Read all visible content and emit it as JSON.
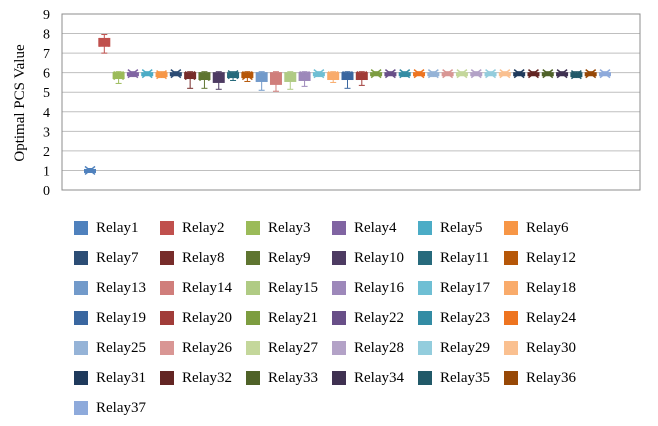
{
  "chart_data": {
    "type": "boxplot",
    "ylabel": "Optimal PCS  Value",
    "ylim": [
      0,
      9
    ],
    "y_ticks": [
      0,
      1,
      2,
      3,
      4,
      5,
      6,
      7,
      8,
      9
    ],
    "grid": true,
    "legend_placement": "bottom",
    "series": [
      {
        "name": "Relay1",
        "color": "#4f81bd",
        "median": 1.0,
        "q1": 0.95,
        "q3": 1.05,
        "min": 0.9,
        "max": 1.1
      },
      {
        "name": "Relay2",
        "color": "#c0504d",
        "median": 7.55,
        "q1": 7.35,
        "q3": 7.75,
        "min": 7.0,
        "max": 7.95
      },
      {
        "name": "Relay3",
        "color": "#9bbb59",
        "median": 5.85,
        "q1": 5.7,
        "q3": 6.0,
        "min": 5.45,
        "max": 6.05
      },
      {
        "name": "Relay4",
        "color": "#8064a2",
        "median": 5.95,
        "q1": 5.85,
        "q3": 6.0,
        "min": 5.8,
        "max": 6.05
      },
      {
        "name": "Relay5",
        "color": "#4bacc6",
        "median": 5.95,
        "q1": 5.9,
        "q3": 6.0,
        "min": 5.85,
        "max": 6.05
      },
      {
        "name": "Relay6",
        "color": "#f79646",
        "median": 5.9,
        "q1": 5.8,
        "q3": 6.0,
        "min": 5.75,
        "max": 6.05
      },
      {
        "name": "Relay7",
        "color": "#2c4d75",
        "median": 5.95,
        "q1": 5.9,
        "q3": 6.0,
        "min": 5.85,
        "max": 6.05
      },
      {
        "name": "Relay8",
        "color": "#772c2a",
        "median": 5.85,
        "q1": 5.7,
        "q3": 6.0,
        "min": 5.2,
        "max": 6.05
      },
      {
        "name": "Relay9",
        "color": "#5f7530",
        "median": 5.8,
        "q1": 5.65,
        "q3": 6.0,
        "min": 5.2,
        "max": 6.05
      },
      {
        "name": "Relay10",
        "color": "#4d3b62",
        "median": 5.75,
        "q1": 5.5,
        "q3": 6.0,
        "min": 5.15,
        "max": 6.05
      },
      {
        "name": "Relay11",
        "color": "#276a7c",
        "median": 5.9,
        "q1": 5.75,
        "q3": 6.0,
        "min": 5.6,
        "max": 6.05
      },
      {
        "name": "Relay12",
        "color": "#b65708",
        "median": 5.85,
        "q1": 5.75,
        "q3": 6.0,
        "min": 5.55,
        "max": 6.05
      },
      {
        "name": "Relay13",
        "color": "#729aca",
        "median": 5.75,
        "q1": 5.55,
        "q3": 6.0,
        "min": 5.1,
        "max": 6.05
      },
      {
        "name": "Relay14",
        "color": "#d07e7b",
        "median": 5.7,
        "q1": 5.4,
        "q3": 6.0,
        "min": 5.05,
        "max": 6.05
      },
      {
        "name": "Relay15",
        "color": "#b0cb84",
        "median": 5.8,
        "q1": 5.55,
        "q3": 6.0,
        "min": 5.15,
        "max": 6.05
      },
      {
        "name": "Relay16",
        "color": "#9d88ba",
        "median": 5.85,
        "q1": 5.6,
        "q3": 6.0,
        "min": 5.3,
        "max": 6.05
      },
      {
        "name": "Relay17",
        "color": "#6fbfd4",
        "median": 5.95,
        "q1": 5.85,
        "q3": 6.0,
        "min": 5.8,
        "max": 6.05
      },
      {
        "name": "Relay18",
        "color": "#f9ab6b",
        "median": 5.85,
        "q1": 5.65,
        "q3": 6.0,
        "min": 5.5,
        "max": 6.05
      },
      {
        "name": "Relay19",
        "color": "#3a67a0",
        "median": 5.85,
        "q1": 5.65,
        "q3": 6.0,
        "min": 5.2,
        "max": 6.05
      },
      {
        "name": "Relay20",
        "color": "#a13c39",
        "median": 5.85,
        "q1": 5.65,
        "q3": 6.0,
        "min": 5.35,
        "max": 6.05
      },
      {
        "name": "Relay21",
        "color": "#7d9d40",
        "median": 5.95,
        "q1": 5.9,
        "q3": 6.0,
        "min": 5.85,
        "max": 6.05
      },
      {
        "name": "Relay22",
        "color": "#684f88",
        "median": 5.95,
        "q1": 5.9,
        "q3": 6.0,
        "min": 5.85,
        "max": 6.05
      },
      {
        "name": "Relay23",
        "color": "#338ca4",
        "median": 5.95,
        "q1": 5.85,
        "q3": 6.0,
        "min": 5.8,
        "max": 6.05
      },
      {
        "name": "Relay24",
        "color": "#ee7420",
        "median": 5.95,
        "q1": 5.9,
        "q3": 6.0,
        "min": 5.85,
        "max": 6.05
      },
      {
        "name": "Relay25",
        "color": "#95b3d7",
        "median": 5.95,
        "q1": 5.85,
        "q3": 6.0,
        "min": 5.8,
        "max": 6.05
      },
      {
        "name": "Relay26",
        "color": "#d99694",
        "median": 5.95,
        "q1": 5.9,
        "q3": 6.0,
        "min": 5.85,
        "max": 6.05
      },
      {
        "name": "Relay27",
        "color": "#c4d79b",
        "median": 5.95,
        "q1": 5.9,
        "q3": 6.0,
        "min": 5.85,
        "max": 6.05
      },
      {
        "name": "Relay28",
        "color": "#b3a2c7",
        "median": 5.95,
        "q1": 5.9,
        "q3": 6.0,
        "min": 5.85,
        "max": 6.05
      },
      {
        "name": "Relay29",
        "color": "#93cddd",
        "median": 5.95,
        "q1": 5.9,
        "q3": 6.0,
        "min": 5.85,
        "max": 6.05
      },
      {
        "name": "Relay30",
        "color": "#fac090",
        "median": 5.95,
        "q1": 5.9,
        "q3": 6.0,
        "min": 5.85,
        "max": 6.05
      },
      {
        "name": "Relay31",
        "color": "#1f3a5c",
        "median": 5.95,
        "q1": 5.9,
        "q3": 6.0,
        "min": 5.85,
        "max": 6.05
      },
      {
        "name": "Relay32",
        "color": "#632523",
        "median": 5.95,
        "q1": 5.9,
        "q3": 6.0,
        "min": 5.85,
        "max": 6.05
      },
      {
        "name": "Relay33",
        "color": "#4f6228",
        "median": 5.95,
        "q1": 5.9,
        "q3": 6.0,
        "min": 5.85,
        "max": 6.05
      },
      {
        "name": "Relay34",
        "color": "#3f3151",
        "median": 5.95,
        "q1": 5.9,
        "q3": 6.0,
        "min": 5.85,
        "max": 6.05
      },
      {
        "name": "Relay35",
        "color": "#215968",
        "median": 5.9,
        "q1": 5.8,
        "q3": 6.0,
        "min": 5.75,
        "max": 6.05
      },
      {
        "name": "Relay36",
        "color": "#974806",
        "median": 5.95,
        "q1": 5.9,
        "q3": 6.0,
        "min": 5.85,
        "max": 6.05
      },
      {
        "name": "Relay37",
        "color": "#8eaadb",
        "median": 5.95,
        "q1": 5.9,
        "q3": 6.0,
        "min": 5.85,
        "max": 6.05
      }
    ]
  }
}
